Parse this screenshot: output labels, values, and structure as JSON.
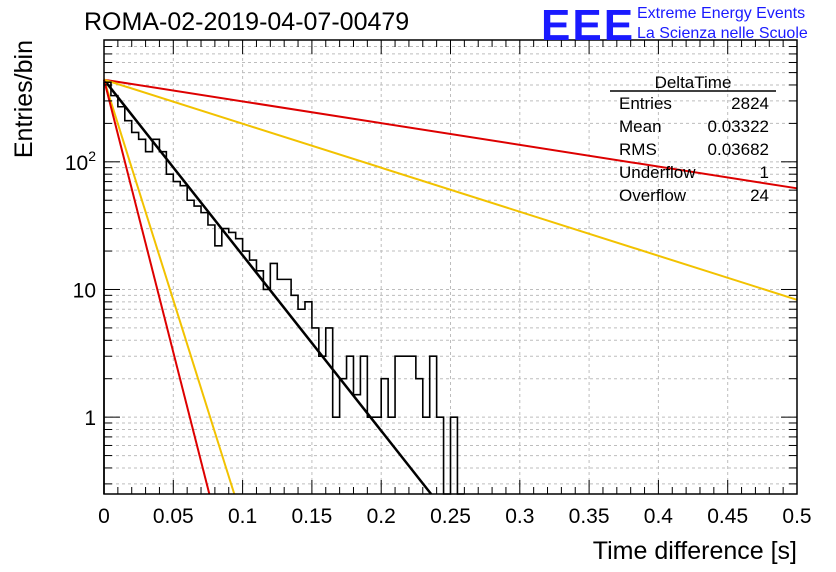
{
  "header": {
    "run_title": "ROMA-02-2019-04-07-00479",
    "logo_text": "EEE",
    "logo_line1": "Extreme Energy Events",
    "logo_line2": "La Scienza nelle Scuole"
  },
  "chart_data": {
    "type": "line",
    "title": "ROMA-02-2019-04-07-00479",
    "xlabel": "Time difference [s]",
    "ylabel": "Entries/bin",
    "xlim": [
      0,
      0.5
    ],
    "ylim": [
      0.25,
      900
    ],
    "y_scale": "log",
    "grid": true,
    "x_ticks": [
      "0",
      "0.05",
      "0.1",
      "0.15",
      "0.2",
      "0.25",
      "0.3",
      "0.35",
      "0.4",
      "0.45",
      "0.5"
    ],
    "y_ticks": [
      {
        "value": 1,
        "base": "1",
        "exp": ""
      },
      {
        "value": 10,
        "base": "10",
        "exp": ""
      },
      {
        "value": 100,
        "base": "10",
        "exp": "2"
      }
    ],
    "histogram": {
      "name": "DeltaTime",
      "color": "#000000",
      "bin_width": 0.005,
      "values": [
        420,
        330,
        270,
        210,
        170,
        150,
        120,
        150,
        120,
        80,
        70,
        65,
        50,
        45,
        40,
        32,
        22,
        30,
        28,
        25,
        20,
        17,
        14,
        10,
        16,
        12,
        12,
        9,
        7,
        8,
        5,
        3,
        5,
        1,
        2,
        3,
        1.5,
        3,
        1,
        1,
        2,
        1,
        3,
        3,
        3,
        2,
        1,
        3,
        1,
        0.1,
        1,
        0.1
      ]
    },
    "stats_box": {
      "title": "DeltaTime",
      "rows": [
        {
          "label": "Entries",
          "value": "2824"
        },
        {
          "label": "Mean",
          "value": "0.03322"
        },
        {
          "label": "RMS",
          "value": "0.03682"
        },
        {
          "label": "Underflow",
          "value": "1"
        },
        {
          "label": "Overflow",
          "value": "24"
        }
      ]
    },
    "fit_lines": [
      {
        "color": "#000000",
        "x": [
          0,
          0.236
        ],
        "y": [
          440,
          0.25
        ]
      },
      {
        "color": "#dd0000",
        "x": [
          0,
          0.5
        ],
        "y": [
          440,
          62
        ]
      },
      {
        "color": "#f2c200",
        "x": [
          0,
          0.5
        ],
        "y": [
          440,
          8.3
        ]
      },
      {
        "color": "#f2c200",
        "x": [
          0,
          0.094
        ],
        "y": [
          440,
          0.25
        ]
      },
      {
        "color": "#dd0000",
        "x": [
          0,
          0.076
        ],
        "y": [
          440,
          0.25
        ]
      }
    ]
  }
}
